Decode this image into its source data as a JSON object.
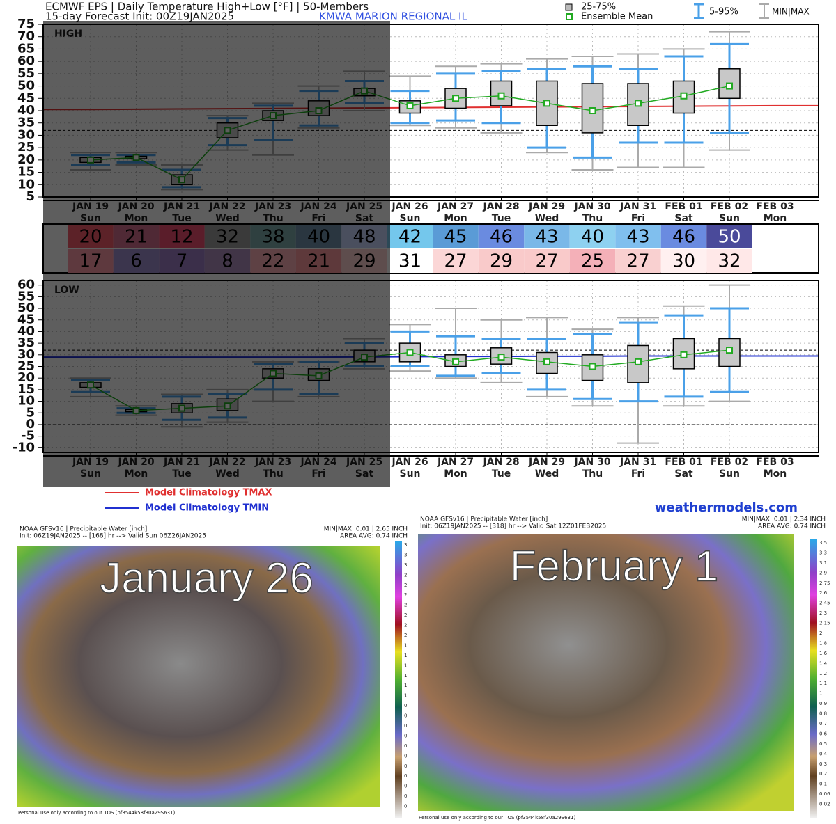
{
  "header": {
    "title": "ECMWF EPS | Daily Temperature High+Low [°F] | 50-Members",
    "init": "15-day Forecast Init: 00Z19JAN2025",
    "station": "KMWA  MARION REGIONAL IL",
    "legend": {
      "box": "25-75%",
      "mean": "Ensemble Mean",
      "p5_95": "5-95%",
      "minmax": "MIN|MAX"
    },
    "site": "weathermodels.com"
  },
  "chart_data": [
    {
      "type": "box",
      "title": "HIGH",
      "ylim": [
        5,
        75
      ],
      "yticks": [
        5,
        10,
        15,
        20,
        25,
        30,
        35,
        40,
        45,
        50,
        55,
        60,
        65,
        70,
        75
      ],
      "grid": true,
      "hlines": [
        32
      ],
      "categories": [
        "JAN 19",
        "JAN 20",
        "JAN 21",
        "JAN 22",
        "JAN 23",
        "JAN 24",
        "JAN 25",
        "JAN 26",
        "JAN 27",
        "JAN 28",
        "JAN 29",
        "JAN 30",
        "JAN 31",
        "FEB 01",
        "FEB 02",
        "FEB 03"
      ],
      "weekdays": [
        "Sun",
        "Mon",
        "Tue",
        "Wed",
        "Thu",
        "Fri",
        "Sat",
        "Sun",
        "Mon",
        "Tue",
        "Wed",
        "Thu",
        "Fri",
        "Sat",
        "Sun",
        "Mon"
      ],
      "min": [
        16,
        18,
        8,
        24,
        22,
        33,
        40,
        34,
        33,
        31,
        23,
        16,
        17,
        17,
        24,
        null
      ],
      "p5": [
        18,
        19,
        9,
        26,
        28,
        34,
        43,
        35,
        36,
        35,
        25,
        21,
        27,
        27,
        31,
        null
      ],
      "p25": [
        19,
        20.5,
        10,
        29,
        36,
        38,
        46,
        39,
        41,
        42,
        34,
        31,
        34,
        39,
        45,
        null
      ],
      "mean": [
        20,
        21,
        12,
        32,
        38,
        40,
        48,
        42,
        45,
        46,
        43,
        40,
        43,
        46,
        50,
        null
      ],
      "p75": [
        21,
        21.5,
        14,
        35,
        40,
        44,
        49,
        44,
        49,
        52,
        52,
        51,
        51,
        52,
        57,
        null
      ],
      "p95": [
        22,
        22,
        16,
        37,
        42,
        48,
        52,
        48,
        55,
        56,
        57,
        58,
        57,
        62,
        67,
        null
      ],
      "max": [
        23,
        23,
        18,
        38,
        43,
        50,
        56,
        54,
        58,
        59,
        61,
        62,
        63,
        65,
        72,
        null
      ],
      "climatology": {
        "name": "Model Climatology TMAX",
        "color": "#e03030",
        "values": [
          40.5,
          40.6,
          40.7,
          40.8,
          40.9,
          41,
          41.1,
          41.2,
          41.3,
          41.4,
          41.5,
          41.6,
          41.7,
          41.8,
          41.9,
          42
        ]
      }
    },
    {
      "type": "box",
      "title": "LOW",
      "ylim": [
        -12,
        62
      ],
      "yticks": [
        -10,
        -5,
        0,
        5,
        10,
        15,
        20,
        25,
        30,
        35,
        40,
        45,
        50,
        55,
        60
      ],
      "grid": true,
      "hlines": [
        32,
        0
      ],
      "categories": [
        "JAN 19",
        "JAN 20",
        "JAN 21",
        "JAN 22",
        "JAN 23",
        "JAN 24",
        "JAN 25",
        "JAN 26",
        "JAN 27",
        "JAN 28",
        "JAN 29",
        "JAN 30",
        "JAN 31",
        "FEB 01",
        "FEB 02",
        "FEB 03"
      ],
      "weekdays": [
        "Sun",
        "Mon",
        "Tue",
        "Wed",
        "Thu",
        "Fri",
        "Sat",
        "Sun",
        "Mon",
        "Tue",
        "Wed",
        "Thu",
        "Fri",
        "Sat",
        "Sun",
        "Mon"
      ],
      "min": [
        12,
        4,
        -1,
        1,
        10,
        12,
        24,
        23,
        20,
        18,
        12,
        8,
        -8,
        8,
        10,
        null
      ],
      "p5": [
        14,
        5,
        2,
        3,
        15,
        13,
        25,
        25,
        21,
        22,
        15,
        11,
        10,
        12,
        14,
        null
      ],
      "p25": [
        16,
        5.5,
        5,
        6,
        20,
        19,
        27,
        27,
        25,
        26,
        22,
        19,
        18,
        24,
        25,
        null
      ],
      "mean": [
        17,
        6,
        7,
        8,
        22,
        21,
        29,
        31,
        27,
        29,
        27,
        25,
        27,
        30,
        32,
        null
      ],
      "p75": [
        18,
        6.5,
        9,
        11,
        24,
        24,
        32,
        35,
        30,
        33,
        31,
        30,
        34,
        37,
        37,
        null
      ],
      "p95": [
        19,
        7,
        12,
        13,
        26,
        27,
        35,
        40,
        38,
        37,
        37,
        39,
        44,
        47,
        50,
        null
      ],
      "max": [
        20,
        8,
        13,
        15,
        27,
        27,
        37,
        43,
        50,
        45,
        46,
        41,
        46,
        51,
        60,
        null
      ],
      "climatology": {
        "name": "Model Climatology TMIN",
        "color": "#2030d0",
        "values": [
          29,
          29,
          29,
          29,
          29,
          29,
          29.1,
          29.2,
          29.3,
          29.3,
          29.4,
          29.4,
          29.5,
          29.5,
          29.5,
          29.5
        ]
      }
    }
  ],
  "table": {
    "high": [
      20,
      21,
      12,
      32,
      38,
      40,
      48,
      42,
      45,
      46,
      43,
      40,
      43,
      46,
      50
    ],
    "high_colors": [
      "#f85c6c",
      "#d6718f",
      "#f34f72",
      "#9d9d9d",
      "#7fadad",
      "#7292ad",
      "#c8d6ff",
      "#74c7ec",
      "#5a9bd6",
      "#6a8be0",
      "#7ab8e8",
      "#8ed1f0",
      "#80bfee",
      "#6a8be0",
      "#4a4a9a"
    ],
    "low": [
      17,
      6,
      7,
      8,
      22,
      21,
      29,
      31,
      27,
      29,
      27,
      25,
      27,
      30,
      32
    ],
    "low_colors": [
      "#ff9aa8",
      "#9f8fd0",
      "#a080c8",
      "#b090c0",
      "#ffb0b8",
      "#ff9aa0",
      "#ffd0d0",
      "#ffffff",
      "#fbd6d6",
      "#f9caca",
      "#f9caca",
      "#f4b0b8",
      "#f9d0d0",
      "#fff0f0",
      "#ffe8e8"
    ]
  },
  "maps": [
    {
      "title": "NOAA GFSv16 |  Precipitable Water [inch]",
      "init": "Init: 06Z19JAN2025 -- [168] hr --> Valid Sun 06Z26JAN2025",
      "minmax": "MIN|MAX: 0.01 | 2.65 INCH",
      "avg": "AREA AVG: 0.74 INCH",
      "label": "January 26",
      "note": "Personal use only according to our TOS (pf3544k58f30a29S631)",
      "colorbar": [
        "3.",
        "3.",
        "3.",
        "2.",
        "2.",
        "2.",
        "2.",
        "2.",
        "2.",
        "2",
        "1.",
        "1.",
        "1.",
        "1.",
        "1.",
        "1",
        "0.",
        "0.",
        "0.",
        "0.",
        "0.",
        "0.",
        "0.",
        "0.",
        "0.",
        "0.",
        "0."
      ]
    },
    {
      "title": "NOAA GFSv16 |  Precipitable Water [inch]",
      "init": "Init: 06Z19JAN2025 -- [318] hr --> Valid Sat 12Z01FEB2025",
      "minmax": "MIN|MAX: 0.01 | 2.34 INCH",
      "avg": "AREA AVG: 0.74 INCH",
      "label": "February 1",
      "note": "Personal use only according to our TOS (pf3544k58f30a29S631)",
      "colorbar": [
        3.5,
        3.3,
        3.1,
        2.9,
        2.75,
        2.6,
        2.45,
        2.3,
        2.15,
        2,
        1.8,
        1.6,
        1.4,
        1.2,
        1.1,
        1,
        0.9,
        0.8,
        0.7,
        0.6,
        0.5,
        0.4,
        0.3,
        0.2,
        0.1,
        0.06,
        0.02
      ]
    }
  ]
}
